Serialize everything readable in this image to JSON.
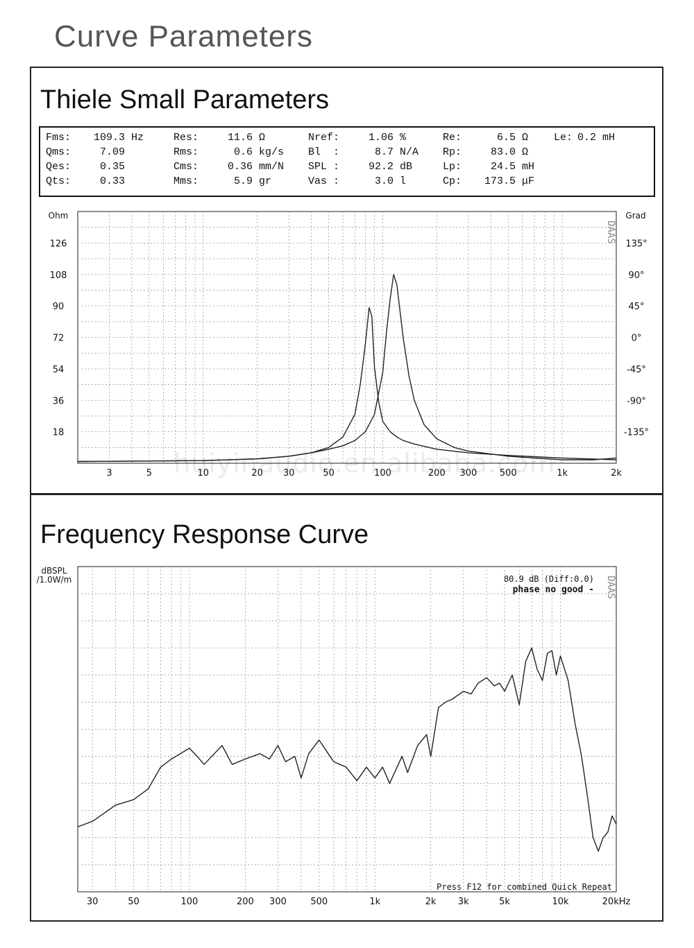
{
  "page_title": "Curve Parameters",
  "ts_section_title": "Thiele Small Parameters",
  "fr_section_title": "Frequency Response Curve",
  "parameters": [
    {
      "label": "Fms:",
      "value": "109.3",
      "unit": "Hz"
    },
    {
      "label": "Qms:",
      "value": "7.09",
      "unit": ""
    },
    {
      "label": "Qes:",
      "value": "0.35",
      "unit": ""
    },
    {
      "label": "Qts:",
      "value": "0.33",
      "unit": ""
    },
    {
      "label": "Res:",
      "value": "11.6",
      "unit": "Ω"
    },
    {
      "label": "Rms:",
      "value": "0.6",
      "unit": "kg/s"
    },
    {
      "label": "Cms:",
      "value": "0.36",
      "unit": "mm/N"
    },
    {
      "label": "Mms:",
      "value": "5.9",
      "unit": "gr"
    },
    {
      "label": "Nref:",
      "value": "1.06",
      "unit": "%"
    },
    {
      "label": "Bl  :",
      "value": "8.7",
      "unit": "N/A"
    },
    {
      "label": "SPL :",
      "value": "92.2",
      "unit": "dB"
    },
    {
      "label": "Vas :",
      "value": "3.0",
      "unit": "l"
    },
    {
      "label": "Re:",
      "value": "6.5",
      "unit": "Ω"
    },
    {
      "label": "Rp:",
      "value": "83.0",
      "unit": "Ω"
    },
    {
      "label": "Lp:",
      "value": "24.5",
      "unit": "mH"
    },
    {
      "label": "Cp:",
      "value": "173.5",
      "unit": "μF"
    },
    {
      "label": "Le:",
      "value": "0.2",
      "unit": "mH"
    }
  ],
  "watermark": "huiyinaudio.en.alibaba.com",
  "chart_data": [
    {
      "type": "line",
      "y_unit_label": "Ohm",
      "y2_unit_label": "Grad",
      "brand": "DAAS",
      "x_scale": "log",
      "xlim": [
        2,
        2000
      ],
      "ylim": [
        0,
        144
      ],
      "y2lim": [
        -180,
        180
      ],
      "x_ticks": [
        3,
        5,
        10,
        20,
        30,
        50,
        100,
        200,
        300,
        500,
        1000,
        2000
      ],
      "x_tick_labels": [
        "3",
        "5",
        "10",
        "20",
        "30",
        "50",
        "100",
        "200",
        "300",
        "500",
        "1k",
        "2k"
      ],
      "y_ticks": [
        18,
        36,
        54,
        72,
        90,
        108,
        126
      ],
      "y_tick_labels": [
        "18",
        "36",
        "54",
        "72",
        "90",
        "108",
        "126"
      ],
      "y2_ticks": [
        135,
        90,
        45,
        0,
        -45,
        -90,
        -135
      ],
      "y2_tick_labels": [
        "135°",
        "90°",
        "45°",
        "0°",
        "-45°",
        "-90°",
        "-135°"
      ],
      "grid": true,
      "series": [
        {
          "color": "#222222",
          "x": [
            2,
            10,
            20,
            30,
            40,
            50,
            60,
            70,
            75,
            80,
            84,
            87,
            90,
            95,
            100,
            110,
            120,
            130,
            150,
            200,
            300,
            500,
            1000,
            2000
          ],
          "y": [
            1,
            1.5,
            2.5,
            4,
            6,
            9,
            15,
            28,
            45,
            68,
            89,
            84,
            55,
            35,
            24,
            18,
            15,
            13,
            11,
            8,
            6,
            4.5,
            3,
            2
          ]
        },
        {
          "color": "#222222",
          "x": [
            2,
            10,
            20,
            30,
            40,
            50,
            60,
            70,
            80,
            90,
            100,
            105,
            110,
            115,
            120,
            130,
            140,
            150,
            170,
            200,
            250,
            300,
            500,
            700,
            1000,
            1500,
            2000
          ],
          "y": [
            1,
            1.5,
            2.5,
            4,
            6,
            8,
            10,
            13,
            18,
            28,
            52,
            75,
            94,
            108,
            102,
            72,
            50,
            36,
            22,
            14,
            9,
            7,
            4,
            3,
            2,
            2,
            3
          ]
        }
      ]
    },
    {
      "type": "line",
      "y_unit_label": "dBSPL\n/1.0W/m",
      "brand": "DAAS",
      "x_scale": "log",
      "xlim": [
        25,
        20000
      ],
      "ylim": [
        0,
        12
      ],
      "x_ticks": [
        30,
        50,
        100,
        200,
        300,
        500,
        1000,
        2000,
        3000,
        5000,
        10000,
        20000
      ],
      "x_tick_labels": [
        "30",
        "50",
        "100",
        "200",
        "300",
        "500",
        "1k",
        "2k",
        "3k",
        "5k",
        "10k",
        "20kHz"
      ],
      "grid": true,
      "readout": "80.9 dB (Diff:0.0)",
      "status": "phase no good -",
      "footer": "Press F12 for combined Quick Repeat",
      "series": [
        {
          "color": "#222222",
          "x": [
            25,
            30,
            40,
            50,
            60,
            70,
            80,
            100,
            110,
            120,
            150,
            170,
            200,
            240,
            270,
            300,
            330,
            370,
            400,
            440,
            500,
            560,
            600,
            700,
            800,
            900,
            1000,
            1100,
            1200,
            1400,
            1500,
            1700,
            1900,
            2000,
            2200,
            2400,
            2600,
            3000,
            3300,
            3600,
            4000,
            4400,
            4700,
            5000,
            5500,
            6000,
            6500,
            7000,
            7500,
            8000,
            8500,
            9000,
            9500,
            10000,
            11000,
            12000,
            13000,
            14000,
            15000,
            16000,
            17000,
            18000,
            19000,
            20000
          ],
          "y": [
            2.4,
            2.6,
            3.2,
            3.4,
            3.8,
            4.6,
            4.9,
            5.3,
            5.0,
            4.7,
            5.4,
            4.7,
            4.9,
            5.1,
            4.9,
            5.4,
            4.8,
            5.0,
            4.2,
            5.1,
            5.6,
            5.1,
            4.8,
            4.6,
            4.1,
            4.6,
            4.2,
            4.6,
            4.0,
            5.0,
            4.4,
            5.4,
            5.8,
            5.0,
            6.8,
            7.0,
            7.1,
            7.4,
            7.3,
            7.7,
            7.9,
            7.6,
            7.7,
            7.4,
            8.0,
            6.9,
            8.5,
            9.0,
            8.2,
            7.8,
            8.8,
            8.9,
            8.0,
            8.7,
            7.8,
            6.2,
            5.0,
            3.5,
            2.0,
            1.5,
            2.0,
            2.2,
            2.8,
            2.5
          ]
        }
      ]
    }
  ]
}
